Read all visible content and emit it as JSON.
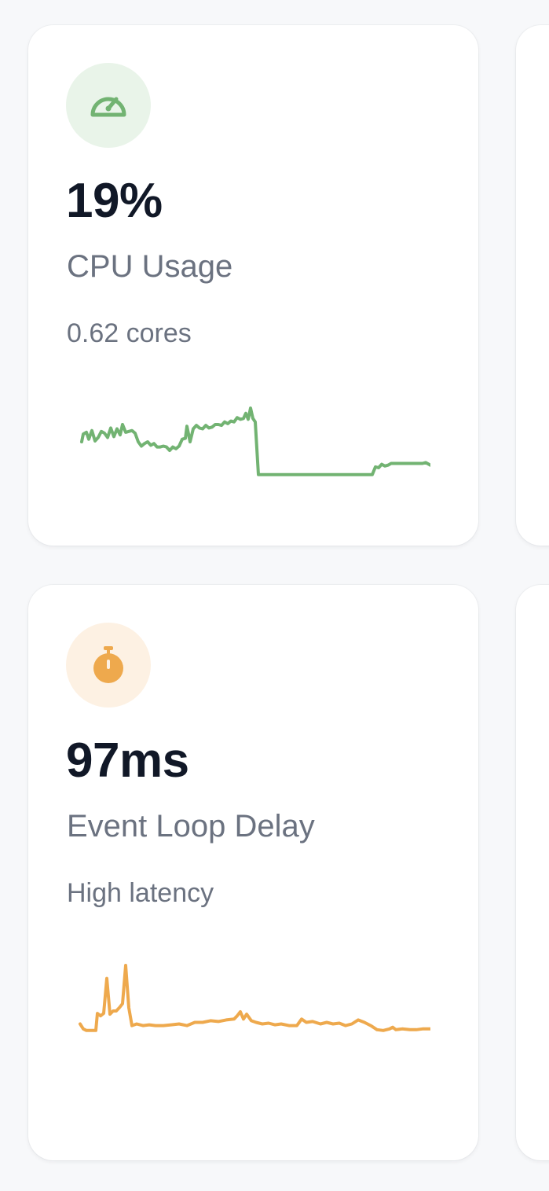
{
  "cards": [
    {
      "value": "19%",
      "label": "CPU Usage",
      "sub": "0.62 cores",
      "icon": "speedometer-icon",
      "accent": "#72b372",
      "icon_bg": "#e9f4e9",
      "sparkline_points": [
        6,
        20,
        8,
        11,
        12,
        9,
        15,
        17,
        19,
        7,
        23,
        19,
        27,
        15,
        31,
        8,
        35,
        10,
        39,
        15,
        43,
        4,
        47,
        14,
        51,
        5,
        55,
        12,
        58,
        0,
        62,
        9,
        66,
        8,
        70,
        7,
        74,
        10,
        78,
        20,
        82,
        25,
        86,
        22,
        90,
        20,
        94,
        24,
        98,
        22,
        102,
        26,
        106,
        26,
        110,
        25,
        114,
        26,
        118,
        30,
        122,
        26,
        126,
        28,
        130,
        25,
        134,
        17,
        138,
        16,
        140,
        2,
        144,
        20,
        148,
        5,
        152,
        1,
        156,
        4,
        160,
        5,
        164,
        1,
        168,
        4,
        172,
        3,
        176,
        0,
        180,
        0,
        184,
        1,
        188,
        -3,
        192,
        -1,
        196,
        -4,
        200,
        -3,
        204,
        -8,
        208,
        -6,
        212,
        -7,
        215,
        -13,
        218,
        -6,
        221,
        -19,
        224,
        -7,
        227,
        -3,
        231,
        58,
        262,
        58,
        300,
        58,
        340,
        58,
        376,
        58,
        380,
        49,
        384,
        50,
        388,
        46,
        392,
        48,
        396,
        47,
        400,
        45,
        440,
        45,
        444,
        44,
        450,
        47
      ],
      "sparkline_min": -20,
      "sparkline_max": 60
    },
    {
      "value": "97ms",
      "label": "Event Loop Delay",
      "sub": "High latency",
      "icon": "stopwatch-icon",
      "accent": "#eea94d",
      "icon_bg": "#fdf1e3",
      "sparkline_points": [
        4,
        72,
        8,
        78,
        12,
        80,
        24,
        80,
        26,
        59,
        30,
        62,
        34,
        59,
        38,
        16,
        42,
        60,
        46,
        56,
        50,
        56,
        54,
        52,
        58,
        47,
        62,
        0,
        66,
        52,
        70,
        74,
        76,
        72,
        84,
        74,
        92,
        73,
        100,
        74,
        110,
        74,
        120,
        73,
        130,
        72,
        140,
        74,
        150,
        70,
        160,
        70,
        170,
        68,
        180,
        69,
        190,
        67,
        200,
        66,
        204,
        62,
        208,
        57,
        212,
        66,
        216,
        60,
        222,
        68,
        228,
        70,
        236,
        72,
        244,
        71,
        252,
        73,
        260,
        72,
        270,
        74,
        280,
        74,
        286,
        66,
        292,
        70,
        300,
        69,
        310,
        72,
        318,
        70,
        326,
        72,
        334,
        71,
        342,
        74,
        350,
        72,
        358,
        67,
        366,
        70,
        374,
        74,
        382,
        79,
        390,
        80,
        398,
        78,
        402,
        76,
        406,
        79,
        414,
        78,
        424,
        79,
        432,
        79,
        440,
        78,
        450,
        78
      ],
      "sparkline_min": 0,
      "sparkline_max": 85
    }
  ]
}
